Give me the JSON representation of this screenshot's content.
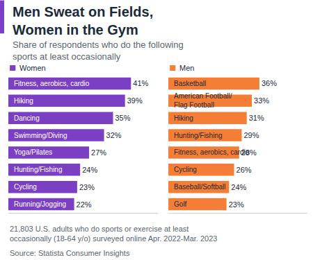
{
  "title": "Men Sweat on Fields,\nWomen in the Gym",
  "subtitle": "Share of respondents who do the following\nsports at least occasionally",
  "note": "21,803 U.S. adults who do sports or exercise at least\noccasionally (18-64 y/o) surveyed online Apr. 2022-Mar. 2023",
  "source": "Source: Statista Consumer Insights",
  "chart_data": [
    {
      "type": "bar",
      "title": "Women",
      "orientation": "horizontal",
      "categories": [
        "Fitness, aerobics, cardio",
        "Hiking",
        "Dancing",
        "Swimming/Diving",
        "Yoga/Pilates",
        "Hunting/Fishing",
        "Cycling",
        "Running/Jogging"
      ],
      "values": [
        41,
        39,
        35,
        32,
        27,
        24,
        23,
        22
      ],
      "value_labels": [
        "41%",
        "39%",
        "35%",
        "32%",
        "27%",
        "24%",
        "23%",
        "22%"
      ],
      "color": "#7b3fc4",
      "xlim": [
        0,
        50
      ],
      "xticks": [],
      "grid": false,
      "data_labels": true,
      "tick_labels": "y"
    },
    {
      "type": "bar",
      "title": "Men",
      "orientation": "horizontal",
      "categories": [
        "Basketball",
        "American Football/\nFlag Football",
        "Hiking",
        "Hunting/Fishing",
        "Fitness, aerobics, cardio",
        "Cycling",
        "Baseball/Softball",
        "Golf"
      ],
      "values": [
        36,
        33,
        31,
        29,
        28,
        26,
        24,
        23
      ],
      "value_labels": [
        "36%",
        "33%",
        "31%",
        "29%",
        "28%",
        "26%",
        "24%",
        "23%"
      ],
      "color": "#f47e35",
      "xlim": [
        0,
        55
      ],
      "xticks": [],
      "grid": false,
      "data_labels": true,
      "tick_labels": "y"
    }
  ]
}
